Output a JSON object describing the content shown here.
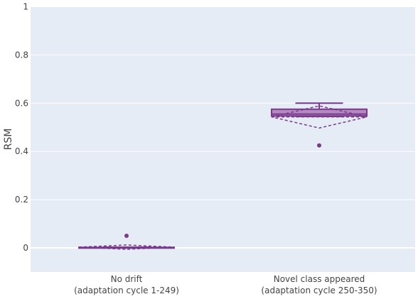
{
  "chart_data": {
    "type": "box",
    "title": "",
    "xlabel": "",
    "ylabel": "RSM",
    "ylim": [
      -0.1,
      1.0
    ],
    "yticks": [
      0,
      0.2,
      0.4,
      0.6,
      0.8,
      1
    ],
    "ytick_labels": [
      "0",
      "0.2",
      "0.4",
      "0.6",
      "0.8",
      "1"
    ],
    "grid": true,
    "legend": "none",
    "colors": {
      "plot_bg": "#e5ecf6",
      "grid": "#ffffff",
      "box_line": "#7a3a8c",
      "box_fill": "#b38ac0",
      "text": "#444444"
    },
    "categories": [
      {
        "line1": "No drift",
        "line2": "(adaptation cycle 1-249)"
      },
      {
        "line1": "Novel class appeared",
        "line2": "(adaptation cycle 250-350)"
      }
    ],
    "boxes": [
      {
        "min": 0.0,
        "q1": 0.0,
        "median": 0.0,
        "q3": 0.002,
        "max": 0.003,
        "mean": 0.003,
        "sd": 0.009,
        "outliers": [
          0.05
        ]
      },
      {
        "min": 0.545,
        "q1": 0.547,
        "median": 0.555,
        "q3": 0.575,
        "max": 0.6,
        "mean": 0.543,
        "sd": 0.046,
        "outliers": [
          0.425
        ]
      }
    ]
  }
}
